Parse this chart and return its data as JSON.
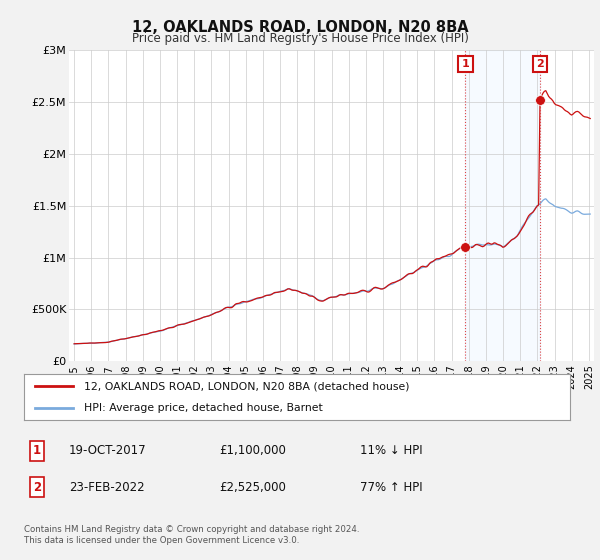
{
  "title": "12, OAKLANDS ROAD, LONDON, N20 8BA",
  "subtitle": "Price paid vs. HM Land Registry's House Price Index (HPI)",
  "background_color": "#f2f2f2",
  "plot_bg_color": "#ffffff",
  "ylim": [
    0,
    3000000
  ],
  "yticks": [
    0,
    500000,
    1000000,
    1500000,
    2000000,
    2500000,
    3000000
  ],
  "ytick_labels": [
    "£0",
    "£500K",
    "£1M",
    "£1.5M",
    "£2M",
    "£2.5M",
    "£3M"
  ],
  "t1_date": 2017.8,
  "t1_price": 1100000,
  "t2_date": 2022.15,
  "t2_price": 2525000,
  "red_line_color": "#cc1111",
  "blue_line_color": "#7aaadd",
  "shade_color": "#ddeeff",
  "vline_color": "#dd4444",
  "box_edge_color": "#cc1111",
  "legend_label_red": "12, OAKLANDS ROAD, LONDON, N20 8BA (detached house)",
  "legend_label_blue": "HPI: Average price, detached house, Barnet",
  "table_row1": [
    "1",
    "19-OCT-2017",
    "£1,100,000",
    "11% ↓ HPI"
  ],
  "table_row2": [
    "2",
    "23-FEB-2022",
    "£2,525,000",
    "77% ↑ HPI"
  ],
  "footer": "Contains HM Land Registry data © Crown copyright and database right 2024.\nThis data is licensed under the Open Government Licence v3.0."
}
